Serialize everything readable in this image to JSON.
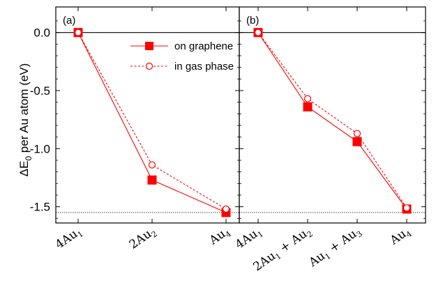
{
  "chart_data": [
    {
      "type": "line",
      "panel": "(a)",
      "categories": [
        "4Au₁",
        "2Au₂",
        "Au₄"
      ],
      "series": [
        {
          "name": "on graphene",
          "values": [
            0.0,
            -1.27,
            -1.55
          ],
          "color": "#ff0000",
          "marker": "filled-square",
          "line": "solid"
        },
        {
          "name": "in gas phase",
          "values": [
            0.0,
            -1.14,
            -1.52
          ],
          "color": "#ff0000",
          "marker": "open-circle",
          "line": "dashed"
        }
      ],
      "ylabel": "ΔE₀ per Au atom (eV)",
      "ylim": [
        -1.64,
        0.22
      ],
      "yticks": [
        "0.0",
        "-0.5",
        "-1.0",
        "-1.5"
      ],
      "reference_lines": [
        {
          "y": 0.0,
          "style": "solid"
        },
        {
          "y": -1.55,
          "style": "dotted"
        }
      ],
      "legend": "top-right"
    },
    {
      "type": "line",
      "panel": "(b)",
      "categories": [
        "4Au₁",
        "2Au₁ + Au₂",
        "Au₁ + Au₃",
        "Au₄"
      ],
      "series": [
        {
          "name": "on graphene",
          "values": [
            0.0,
            -0.64,
            -0.94,
            -1.52
          ],
          "color": "#ff0000",
          "marker": "filled-square",
          "line": "solid"
        },
        {
          "name": "in gas phase",
          "values": [
            0.0,
            -0.57,
            -0.87,
            -1.51
          ],
          "color": "#ff0000",
          "marker": "open-circle",
          "line": "dashed"
        }
      ],
      "ylim": [
        -1.64,
        0.22
      ],
      "reference_lines": [
        {
          "y": 0.0,
          "style": "solid"
        },
        {
          "y": -1.55,
          "style": "dotted"
        }
      ]
    }
  ]
}
